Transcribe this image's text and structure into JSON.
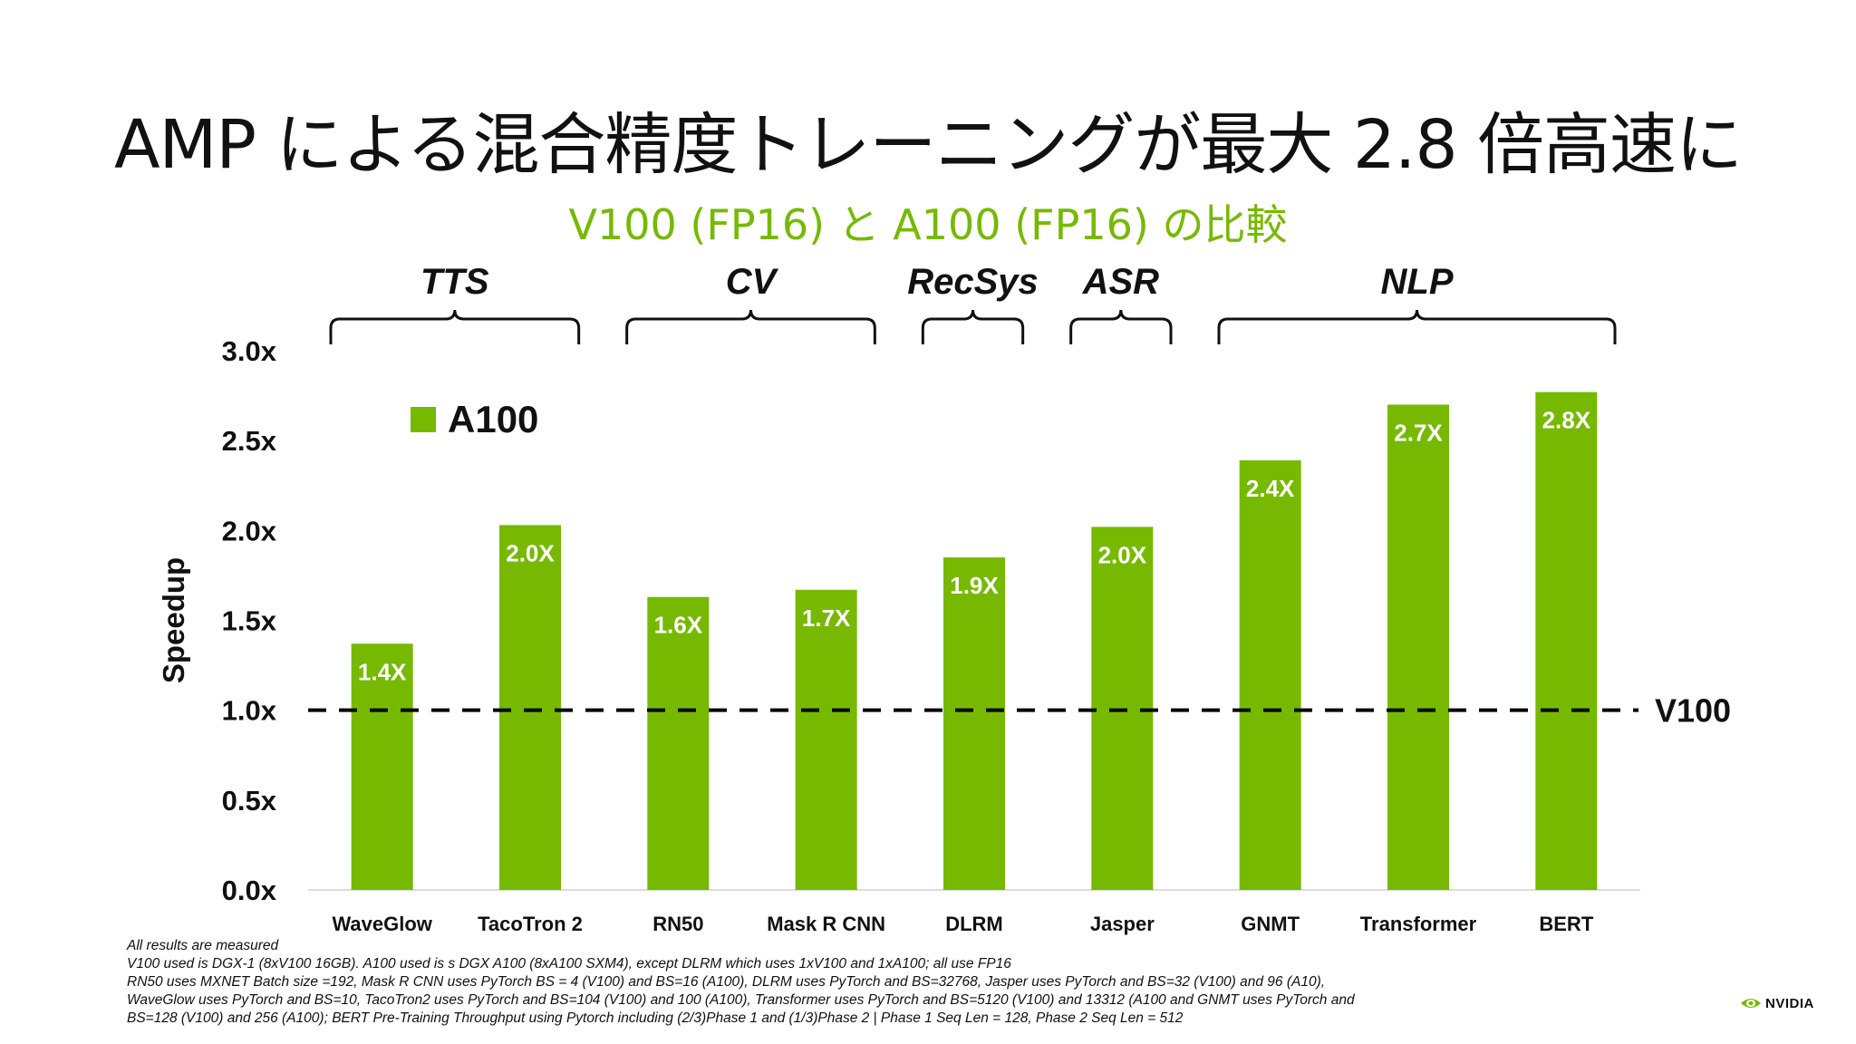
{
  "slide": {
    "title": "AMP による混合精度トレーニングが最大 2.8 倍高速に",
    "subtitle": "V100 (FP16) と A100 (FP16) の比較",
    "footnotes": [
      "All results are measured",
      "V100 used is DGX-1 (8xV100 16GB). A100 used is s DGX A100 (8xA100 SXM4), except DLRM which uses 1xV100 and 1xA100; all use FP16",
      "RN50 uses MXNET Batch size =192, Mask R CNN uses PyTorch BS = 4 (V100) and BS=16 (A100), DLRM uses PyTorch and BS=32768, Jasper uses PyTorch and BS=32 (V100) and 96 (A10),",
      "WaveGlow uses PyTorch and BS=10, TacoTron2 uses PyTorch and BS=104 (V100) and 100 (A100), Transformer uses PyTorch and BS=5120 (V100) and 13312 (A100 and GNMT uses PyTorch and",
      "BS=128 (V100) and 256 (A100); BERT Pre-Training Throughput using Pytorch including (2/3)Phase 1 and (1/3)Phase 2 | Phase 1 Seq Len = 128, Phase 2 Seq Len = 512"
    ],
    "logo_text": "NVIDIA"
  },
  "colors": {
    "accent": "#76b900",
    "text": "#111111",
    "bar_label": "#ffffff"
  },
  "chart_data": {
    "type": "bar",
    "title": "",
    "xlabel": "",
    "ylabel": "Speedup",
    "ylim": [
      0,
      3.0
    ],
    "yticks": [
      0.0,
      0.5,
      1.0,
      1.5,
      2.0,
      2.5,
      3.0
    ],
    "ytick_labels": [
      "0.0x",
      "0.5x",
      "1.0x",
      "1.5x",
      "2.0x",
      "2.5x",
      "3.0x"
    ],
    "categories": [
      "WaveGlow",
      "TacoTron 2",
      "RN50",
      "Mask R CNN",
      "DLRM",
      "Jasper",
      "GNMT",
      "Transformer",
      "BERT"
    ],
    "series": [
      {
        "name": "A100",
        "values": [
          1.37,
          2.03,
          1.63,
          1.67,
          1.85,
          2.02,
          2.39,
          2.7,
          2.77
        ],
        "labels": [
          "1.4X",
          "2.0X",
          "1.6X",
          "1.7X",
          "1.9X",
          "2.0X",
          "2.4X",
          "2.7X",
          "2.8X"
        ]
      }
    ],
    "baseline": {
      "name": "V100",
      "value": 1.0,
      "style": "dashed"
    },
    "legend": {
      "entries": [
        "A100"
      ],
      "placement": "top-left"
    },
    "groups": [
      {
        "label": "TTS",
        "from": 0,
        "to": 1
      },
      {
        "label": "CV",
        "from": 2,
        "to": 3
      },
      {
        "label": "RecSys",
        "from": 4,
        "to": 4
      },
      {
        "label": "ASR",
        "from": 5,
        "to": 5
      },
      {
        "label": "NLP",
        "from": 6,
        "to": 8
      }
    ],
    "grid": false
  }
}
